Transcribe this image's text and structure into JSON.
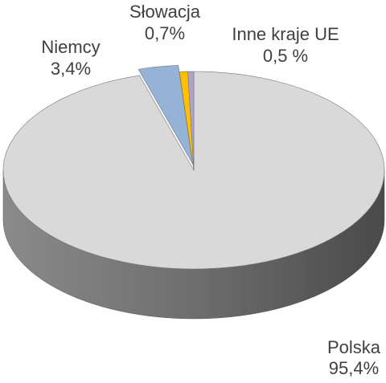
{
  "chart_data": {
    "type": "pie",
    "categories": [
      "Polska",
      "Niemcy",
      "Słowacja",
      "Inne kraje UE"
    ],
    "values": [
      95.4,
      3.4,
      0.7,
      0.5
    ],
    "value_labels": [
      "95,4%",
      "3,4%",
      "0,7%",
      "0,5 %"
    ],
    "colors": [
      "#d9d9d9",
      "#95b3d7",
      "#ffc000",
      "#b3a2c7"
    ]
  }
}
